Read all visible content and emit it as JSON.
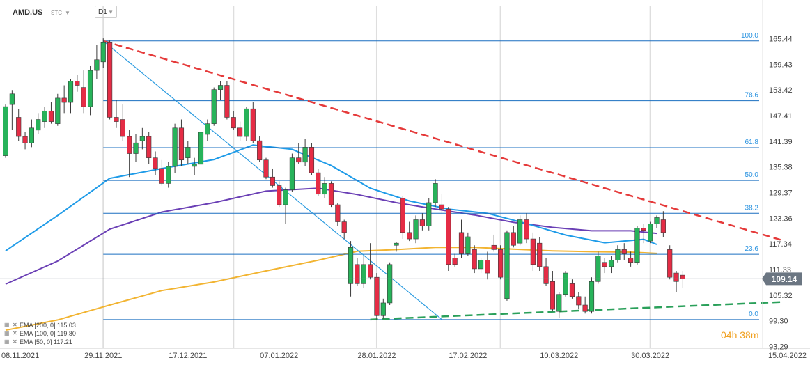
{
  "header": {
    "symbol": "AMD.US",
    "stc": "STC",
    "timeframe": "D1"
  },
  "timer": "04h 38m",
  "price_badge": "109.14",
  "fib_labels": [
    "100.0",
    "78.6",
    "61.8",
    "50.0",
    "38.2",
    "23.6",
    "0.0"
  ],
  "legend": [
    {
      "label": "EMA [200, 0]",
      "value": "115.03",
      "color": "#f2b431"
    },
    {
      "label": "EMA [100, 0]",
      "value": "119.80",
      "color": "#6a3fb5"
    },
    {
      "label": "EMA [50, 0]",
      "value": "117.21",
      "color": "#1e9be8"
    }
  ],
  "chart_data": {
    "type": "candlestick",
    "symbol": "AMD.US",
    "timeframe": "D1",
    "y_ticks": [
      "165.44",
      "159.43",
      "153.42",
      "147.41",
      "141.39",
      "135.38",
      "129.37",
      "123.36",
      "117.34",
      "111.33",
      "105.32",
      "99.30",
      "93.29"
    ],
    "ylim": [
      93.29,
      167.0
    ],
    "x_labels": [
      "08.11.2021",
      "29.11.2021",
      "17.12.2021",
      "07.01.2022",
      "28.01.2022",
      "17.02.2022",
      "10.03.2022",
      "30.03.2022",
      "15.04.2022"
    ],
    "x_label_index": [
      0,
      15,
      28,
      42,
      57,
      71,
      85,
      99,
      114
    ],
    "separator_index": [
      15,
      35,
      57,
      76,
      99
    ],
    "last_price": 109.14,
    "fibonacci": [
      {
        "level": "100.0",
        "price": 164.9
      },
      {
        "level": "78.6",
        "price": 150.9
      },
      {
        "level": "61.8",
        "price": 139.9
      },
      {
        "level": "50.0",
        "price": 132.2
      },
      {
        "level": "38.2",
        "price": 124.5
      },
      {
        "level": "23.6",
        "price": 114.9
      },
      {
        "level": "0.0",
        "price": 99.6
      }
    ],
    "trendlines": [
      {
        "name": "resistance",
        "color": "#e53a3a",
        "dash": true,
        "from": [
          15,
          164.9
        ],
        "to": [
          119,
          118.3
        ]
      },
      {
        "name": "support",
        "color": "#2aa05a",
        "dash": true,
        "from": [
          56,
          99.6
        ],
        "to": [
          119,
          103.7
        ]
      },
      {
        "name": "fan",
        "color": "#2a9be0",
        "dash": false,
        "from": [
          15,
          164.9
        ],
        "to": [
          67,
          99.6
        ]
      }
    ],
    "ema": [
      {
        "name": "EMA 200",
        "color": "#f2b431",
        "points": [
          [
            0,
            97.1
          ],
          [
            8,
            99.5
          ],
          [
            16,
            103.0
          ],
          [
            24,
            106.4
          ],
          [
            32,
            108.4
          ],
          [
            40,
            111.0
          ],
          [
            48,
            113.5
          ],
          [
            54,
            115.6
          ],
          [
            60,
            116.0
          ],
          [
            66,
            116.5
          ],
          [
            72,
            116.5
          ],
          [
            78,
            116.1
          ],
          [
            84,
            115.7
          ],
          [
            90,
            115.5
          ],
          [
            96,
            115.4
          ],
          [
            100,
            115.1
          ]
        ]
      },
      {
        "name": "EMA 100",
        "color": "#6a3fb5",
        "points": [
          [
            0,
            107.9
          ],
          [
            8,
            113.3
          ],
          [
            16,
            120.8
          ],
          [
            24,
            124.8
          ],
          [
            32,
            127.0
          ],
          [
            40,
            129.7
          ],
          [
            48,
            130.4
          ],
          [
            54,
            128.9
          ],
          [
            60,
            127.0
          ],
          [
            66,
            125.5
          ],
          [
            72,
            124.1
          ],
          [
            78,
            122.4
          ],
          [
            84,
            121.2
          ],
          [
            90,
            120.4
          ],
          [
            96,
            120.4
          ],
          [
            100,
            119.8
          ]
        ]
      },
      {
        "name": "EMA 50",
        "color": "#1e9be8",
        "points": [
          [
            0,
            115.7
          ],
          [
            8,
            124.0
          ],
          [
            16,
            132.7
          ],
          [
            24,
            135.0
          ],
          [
            32,
            137.1
          ],
          [
            38,
            140.5
          ],
          [
            44,
            139.5
          ],
          [
            50,
            135.7
          ],
          [
            56,
            130.4
          ],
          [
            62,
            127.4
          ],
          [
            68,
            125.5
          ],
          [
            74,
            124.5
          ],
          [
            80,
            122.1
          ],
          [
            86,
            119.4
          ],
          [
            92,
            117.6
          ],
          [
            98,
            118.4
          ],
          [
            100,
            117.2
          ]
        ]
      }
    ],
    "candles": [
      {
        "o": 138.0,
        "h": 150.0,
        "l": 137.5,
        "c": 149.5
      },
      {
        "o": 150.0,
        "h": 153.4,
        "l": 144.0,
        "c": 152.5
      },
      {
        "o": 147.0,
        "h": 149.0,
        "l": 141.5,
        "c": 142.5
      },
      {
        "o": 142.5,
        "h": 143.5,
        "l": 139.5,
        "c": 141.0
      },
      {
        "o": 141.0,
        "h": 146.5,
        "l": 140.0,
        "c": 144.5
      },
      {
        "o": 144.0,
        "h": 148.0,
        "l": 143.0,
        "c": 146.5
      },
      {
        "o": 146.0,
        "h": 149.5,
        "l": 144.5,
        "c": 148.5
      },
      {
        "o": 148.5,
        "h": 150.5,
        "l": 145.5,
        "c": 146.0
      },
      {
        "o": 145.5,
        "h": 152.5,
        "l": 145.0,
        "c": 151.5
      },
      {
        "o": 151.5,
        "h": 154.5,
        "l": 148.0,
        "c": 150.5
      },
      {
        "o": 150.5,
        "h": 156.0,
        "l": 148.0,
        "c": 155.5
      },
      {
        "o": 155.5,
        "h": 157.0,
        "l": 153.0,
        "c": 154.5
      },
      {
        "o": 154.0,
        "h": 158.0,
        "l": 148.0,
        "c": 149.5
      },
      {
        "o": 149.5,
        "h": 159.0,
        "l": 147.5,
        "c": 158.0
      },
      {
        "o": 158.0,
        "h": 164.0,
        "l": 156.0,
        "c": 160.5
      },
      {
        "o": 160.0,
        "h": 165.5,
        "l": 158.5,
        "c": 164.5
      },
      {
        "o": 164.5,
        "h": 165.0,
        "l": 146.5,
        "c": 147.0
      },
      {
        "o": 147.0,
        "h": 151.0,
        "l": 144.5,
        "c": 146.0
      },
      {
        "o": 146.5,
        "h": 150.0,
        "l": 141.5,
        "c": 142.5
      },
      {
        "o": 142.5,
        "h": 144.0,
        "l": 133.0,
        "c": 138.5
      },
      {
        "o": 138.5,
        "h": 143.0,
        "l": 136.5,
        "c": 141.0
      },
      {
        "o": 141.5,
        "h": 144.5,
        "l": 139.5,
        "c": 142.5
      },
      {
        "o": 142.5,
        "h": 143.5,
        "l": 136.0,
        "c": 137.5
      },
      {
        "o": 137.5,
        "h": 139.0,
        "l": 133.5,
        "c": 135.0
      },
      {
        "o": 135.0,
        "h": 137.0,
        "l": 131.0,
        "c": 131.5
      },
      {
        "o": 131.5,
        "h": 136.5,
        "l": 130.5,
        "c": 135.5
      },
      {
        "o": 135.5,
        "h": 145.5,
        "l": 134.0,
        "c": 144.5
      },
      {
        "o": 144.5,
        "h": 146.5,
        "l": 135.5,
        "c": 137.0
      },
      {
        "o": 137.5,
        "h": 141.5,
        "l": 136.0,
        "c": 140.0
      },
      {
        "o": 135.5,
        "h": 137.5,
        "l": 133.5,
        "c": 136.0
      },
      {
        "o": 136.0,
        "h": 144.0,
        "l": 135.0,
        "c": 143.5
      },
      {
        "o": 143.0,
        "h": 146.5,
        "l": 141.5,
        "c": 145.5
      },
      {
        "o": 145.5,
        "h": 154.0,
        "l": 145.0,
        "c": 153.5
      },
      {
        "o": 153.5,
        "h": 155.5,
        "l": 151.0,
        "c": 154.5
      },
      {
        "o": 154.5,
        "h": 155.5,
        "l": 146.5,
        "c": 147.0
      },
      {
        "o": 147.0,
        "h": 148.5,
        "l": 144.0,
        "c": 144.5
      },
      {
        "o": 144.5,
        "h": 146.0,
        "l": 141.5,
        "c": 142.5
      },
      {
        "o": 142.5,
        "h": 149.5,
        "l": 141.5,
        "c": 149.0
      },
      {
        "o": 149.0,
        "h": 150.5,
        "l": 141.0,
        "c": 141.5
      },
      {
        "o": 141.5,
        "h": 142.5,
        "l": 136.5,
        "c": 137.0
      },
      {
        "o": 137.0,
        "h": 137.5,
        "l": 132.5,
        "c": 133.0
      },
      {
        "o": 133.0,
        "h": 135.0,
        "l": 130.5,
        "c": 131.0
      },
      {
        "o": 131.0,
        "h": 132.0,
        "l": 126.0,
        "c": 126.5
      },
      {
        "o": 126.5,
        "h": 130.5,
        "l": 122.0,
        "c": 130.0
      },
      {
        "o": 130.0,
        "h": 138.5,
        "l": 129.5,
        "c": 137.5
      },
      {
        "o": 137.5,
        "h": 141.0,
        "l": 136.0,
        "c": 136.5
      },
      {
        "o": 136.5,
        "h": 142.0,
        "l": 135.5,
        "c": 140.0
      },
      {
        "o": 140.0,
        "h": 141.0,
        "l": 133.5,
        "c": 134.0
      },
      {
        "o": 134.0,
        "h": 135.0,
        "l": 128.5,
        "c": 129.0
      },
      {
        "o": 129.0,
        "h": 133.0,
        "l": 128.0,
        "c": 131.5
      },
      {
        "o": 131.5,
        "h": 132.0,
        "l": 126.0,
        "c": 126.5
      },
      {
        "o": 126.5,
        "h": 127.0,
        "l": 121.5,
        "c": 122.5
      },
      {
        "o": 122.5,
        "h": 123.0,
        "l": 118.5,
        "c": 120.0
      },
      {
        "o": 108.0,
        "h": 118.0,
        "l": 105.0,
        "c": 116.5
      },
      {
        "o": 112.5,
        "h": 114.0,
        "l": 107.5,
        "c": 108.0
      },
      {
        "o": 108.0,
        "h": 114.5,
        "l": 107.0,
        "c": 112.5
      },
      {
        "o": 112.5,
        "h": 117.5,
        "l": 109.0,
        "c": 109.5
      },
      {
        "o": 109.5,
        "h": 110.5,
        "l": 99.6,
        "c": 100.5
      },
      {
        "o": 100.5,
        "h": 104.5,
        "l": 99.8,
        "c": 103.5
      },
      {
        "o": 103.5,
        "h": 113.0,
        "l": 103.0,
        "c": 112.5
      },
      {
        "o": 117.0,
        "h": 117.8,
        "l": 115.5,
        "c": 117.5
      },
      {
        "o": 128.0,
        "h": 128.5,
        "l": 118.5,
        "c": 120.0
      },
      {
        "o": 120.0,
        "h": 122.5,
        "l": 118.0,
        "c": 118.5
      },
      {
        "o": 118.5,
        "h": 124.0,
        "l": 117.5,
        "c": 123.0
      },
      {
        "o": 123.0,
        "h": 124.5,
        "l": 120.5,
        "c": 121.5
      },
      {
        "o": 121.5,
        "h": 128.0,
        "l": 120.5,
        "c": 127.0
      },
      {
        "o": 127.0,
        "h": 132.5,
        "l": 126.0,
        "c": 131.5
      },
      {
        "o": 126.5,
        "h": 129.0,
        "l": 124.5,
        "c": 125.5
      },
      {
        "o": 125.5,
        "h": 126.0,
        "l": 111.0,
        "c": 112.5
      },
      {
        "o": 114.0,
        "h": 115.0,
        "l": 112.0,
        "c": 112.5
      },
      {
        "o": 120.0,
        "h": 123.0,
        "l": 114.0,
        "c": 115.0
      },
      {
        "o": 115.0,
        "h": 120.0,
        "l": 114.5,
        "c": 119.0
      },
      {
        "o": 116.0,
        "h": 117.0,
        "l": 110.5,
        "c": 111.5
      },
      {
        "o": 111.5,
        "h": 114.0,
        "l": 110.5,
        "c": 113.5
      },
      {
        "o": 113.5,
        "h": 115.5,
        "l": 109.0,
        "c": 110.5
      },
      {
        "o": 117.0,
        "h": 119.5,
        "l": 115.5,
        "c": 116.0
      },
      {
        "o": 116.0,
        "h": 117.0,
        "l": 109.0,
        "c": 109.5
      },
      {
        "o": 104.5,
        "h": 120.5,
        "l": 104.0,
        "c": 120.0
      },
      {
        "o": 120.0,
        "h": 121.5,
        "l": 116.5,
        "c": 117.0
      },
      {
        "o": 117.5,
        "h": 124.0,
        "l": 117.0,
        "c": 123.0
      },
      {
        "o": 123.0,
        "h": 124.5,
        "l": 117.5,
        "c": 118.5
      },
      {
        "o": 118.5,
        "h": 120.0,
        "l": 111.0,
        "c": 112.5
      },
      {
        "o": 117.5,
        "h": 119.0,
        "l": 111.0,
        "c": 112.0
      },
      {
        "o": 112.0,
        "h": 114.0,
        "l": 107.5,
        "c": 108.0
      },
      {
        "o": 108.5,
        "h": 111.0,
        "l": 101.5,
        "c": 102.0
      },
      {
        "o": 101.5,
        "h": 106.0,
        "l": 100.0,
        "c": 105.5
      },
      {
        "o": 105.5,
        "h": 111.0,
        "l": 105.0,
        "c": 110.5
      },
      {
        "o": 108.0,
        "h": 109.0,
        "l": 104.5,
        "c": 105.0
      },
      {
        "o": 105.0,
        "h": 106.0,
        "l": 102.0,
        "c": 103.0
      },
      {
        "o": 103.0,
        "h": 105.0,
        "l": 101.0,
        "c": 101.5
      },
      {
        "o": 101.5,
        "h": 109.5,
        "l": 101.0,
        "c": 108.5
      },
      {
        "o": 108.5,
        "h": 115.5,
        "l": 108.0,
        "c": 114.5
      },
      {
        "o": 113.0,
        "h": 114.0,
        "l": 110.5,
        "c": 112.0
      },
      {
        "o": 112.0,
        "h": 114.5,
        "l": 110.5,
        "c": 113.5
      },
      {
        "o": 113.5,
        "h": 117.0,
        "l": 113.0,
        "c": 116.0
      },
      {
        "o": 116.0,
        "h": 117.5,
        "l": 113.5,
        "c": 115.0
      },
      {
        "o": 114.0,
        "h": 115.5,
        "l": 112.0,
        "c": 113.0
      },
      {
        "o": 113.0,
        "h": 121.5,
        "l": 112.5,
        "c": 121.0
      },
      {
        "o": 121.0,
        "h": 122.0,
        "l": 117.5,
        "c": 120.5
      },
      {
        "o": 118.0,
        "h": 122.5,
        "l": 117.5,
        "c": 122.0
      },
      {
        "o": 122.0,
        "h": 124.0,
        "l": 121.0,
        "c": 123.5
      },
      {
        "o": 123.0,
        "h": 125.0,
        "l": 119.0,
        "c": 120.0
      },
      {
        "o": 116.0,
        "h": 117.0,
        "l": 109.0,
        "c": 109.5
      },
      {
        "o": 110.5,
        "h": 111.0,
        "l": 106.0,
        "c": 108.5
      },
      {
        "o": 110.0,
        "h": 111.0,
        "l": 107.0,
        "c": 109.1
      }
    ]
  }
}
